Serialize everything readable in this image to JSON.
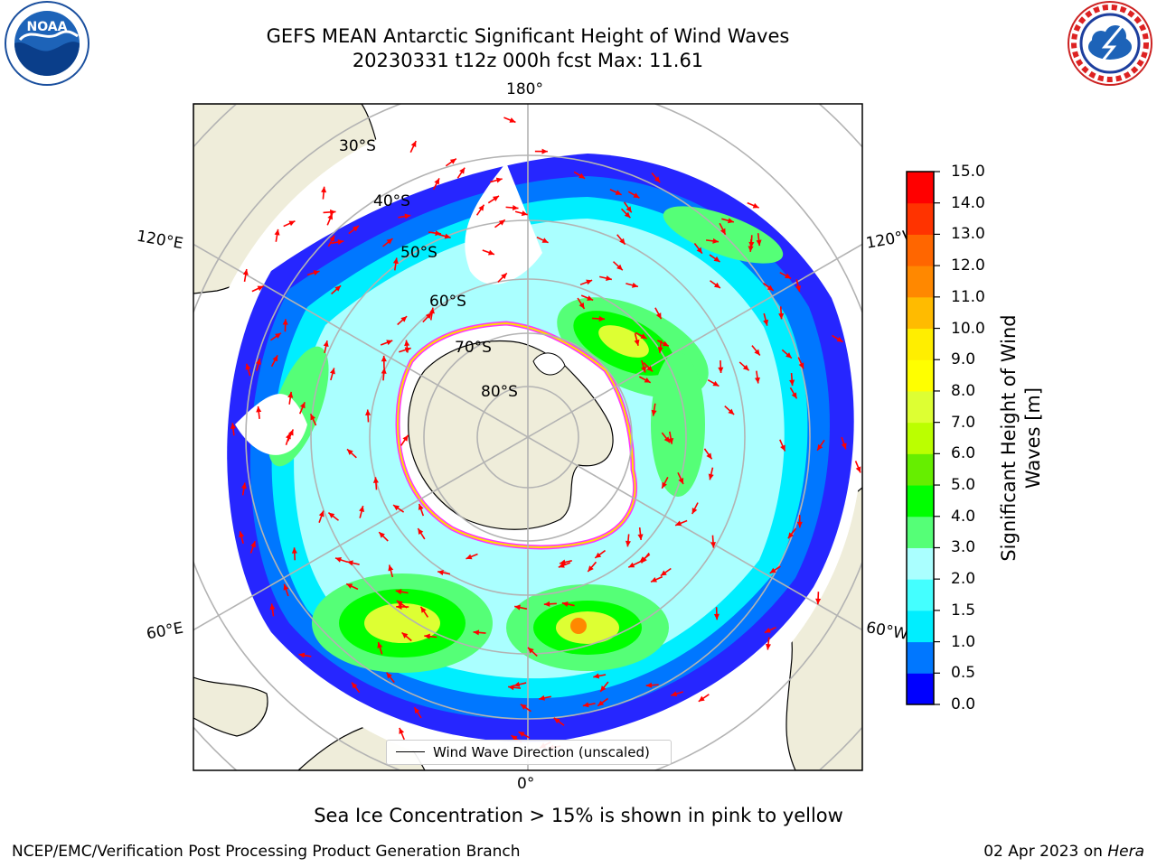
{
  "title": {
    "line1": "GEFS MEAN Antarctic Significant Height of Wind Waves",
    "line2": "20230331 t12z 000h fcst   Max: 11.61"
  },
  "logos": {
    "left": {
      "icon": "noaa-logo-icon",
      "text": "NOAA"
    },
    "right": {
      "icon": "nws-logo-icon",
      "text": "NATIONAL WEATHER SERVICE"
    }
  },
  "map": {
    "projection": "south-polar-stereographic",
    "meridian_labels": {
      "top": "180°",
      "bottom": "0°",
      "upper_left": "120°E",
      "lower_left": "60°E",
      "upper_right": "120°W",
      "lower_right": "60°W"
    },
    "parallel_labels": [
      "30°S",
      "40°S",
      "50°S",
      "60°S",
      "70°S",
      "80°S"
    ],
    "land_color": "#efedda",
    "ocean_color": "#ffffff",
    "gridline_color": "#b3b3b3",
    "arrow_color": "#ff0000",
    "sea_ice_edge_colors": [
      "#ff33ff",
      "#ffdd00"
    ]
  },
  "legend": {
    "entry": "Wind Wave Direction (unscaled)"
  },
  "colorbar": {
    "label": "Significant Height of Wind Waves [m]",
    "ticks": [
      "0.0",
      "0.5",
      "1.0",
      "1.5",
      "2.0",
      "3.0",
      "4.0",
      "5.0",
      "6.0",
      "7.0",
      "8.0",
      "9.0",
      "10.0",
      "11.0",
      "12.0",
      "13.0",
      "14.0",
      "15.0"
    ],
    "bins": [
      {
        "range": "0.0-0.5",
        "color": "#0000ff"
      },
      {
        "range": "0.5-1.0",
        "color": "#0077ff"
      },
      {
        "range": "1.0-1.5",
        "color": "#00eeff"
      },
      {
        "range": "1.5-2.0",
        "color": "#44ffff"
      },
      {
        "range": "2.0-3.0",
        "color": "#aaffff"
      },
      {
        "range": "3.0-4.0",
        "color": "#55ff77"
      },
      {
        "range": "4.0-5.0",
        "color": "#00ff00"
      },
      {
        "range": "5.0-6.0",
        "color": "#66ee00"
      },
      {
        "range": "6.0-7.0",
        "color": "#bbff00"
      },
      {
        "range": "7.0-8.0",
        "color": "#ddff33"
      },
      {
        "range": "8.0-9.0",
        "color": "#ffff00"
      },
      {
        "range": "9.0-10.0",
        "color": "#ffee00"
      },
      {
        "range": "10.0-11.0",
        "color": "#ffbb00"
      },
      {
        "range": "11.0-12.0",
        "color": "#ff8800"
      },
      {
        "range": "12.0-13.0",
        "color": "#ff6600"
      },
      {
        "range": "13.0-14.0",
        "color": "#ff3300"
      },
      {
        "range": "14.0-15.0",
        "color": "#ff0000"
      }
    ]
  },
  "subtitle": "Sea Ice Concentration > 15% is shown in pink to yellow",
  "footer": {
    "left": "NCEP/EMC/Verification Post Processing Product Generation Branch",
    "right_prefix": "02 Apr 2023 on ",
    "right_host": "Hera"
  }
}
